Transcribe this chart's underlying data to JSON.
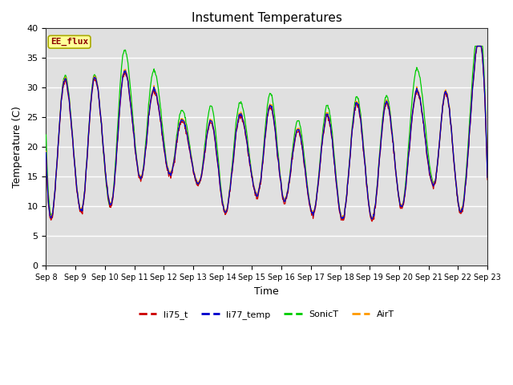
{
  "title": "Instument Temperatures",
  "xlabel": "Time",
  "ylabel": "Temperature (C)",
  "ylim": [
    0,
    40
  ],
  "xlim": [
    0,
    15
  ],
  "xtick_labels": [
    "Sep 8",
    "Sep 9",
    "Sep 10",
    "Sep 11",
    "Sep 12",
    "Sep 13",
    "Sep 14",
    "Sep 15",
    "Sep 16",
    "Sep 17",
    "Sep 18",
    "Sep 19",
    "Sep 20",
    "Sep 21",
    "Sep 22",
    "Sep 23"
  ],
  "bg_color": "#e0e0e0",
  "fig_color": "#ffffff",
  "annotation_text": "EE_flux",
  "annotation_bg": "#ffff99",
  "annotation_border": "#aaaa00",
  "annotation_text_color": "#8b0000",
  "legend_entries": [
    "li75_t",
    "li77_temp",
    "SonicT",
    "AirT"
  ],
  "line_colors": [
    "#cc0000",
    "#0000cc",
    "#00cc00",
    "#ff9900"
  ]
}
